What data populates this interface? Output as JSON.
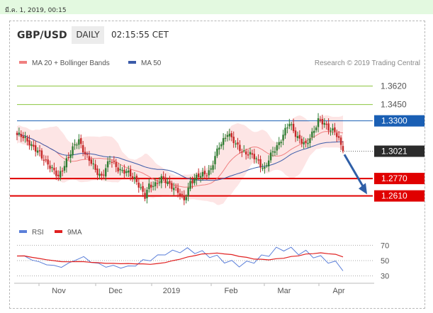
{
  "header": {
    "timestamp": "มี.ค. 1, 2019, 00:15",
    "pair": "GBP/USD",
    "period": "DAILY",
    "time": "02:15:55 CET"
  },
  "legend": {
    "ma20": "MA 20 + Bollinger Bands",
    "ma50": "MA 50",
    "credit": "Research © 2019 Trading Central",
    "rsi": "RSI",
    "ma9": "9MA"
  },
  "colors": {
    "ma20": "#f08080",
    "ma50": "#3b5ba9",
    "bands": "#fde0e0",
    "resistance": "#1a5fb4",
    "support": "#e00000",
    "target": "#8cc63f",
    "arrow": "#2f5fa7",
    "candle_up": "#2e7d32",
    "candle_down": "#c62828",
    "rsi": "#5b7fd9",
    "rsi_ma": "#e02020"
  },
  "chart_data": {
    "type": "candlestick",
    "instrument": "GBP/USD",
    "timeframe": "daily",
    "x_labels": [
      "Nov",
      "Dec",
      "2019",
      "Feb",
      "Mar",
      "Apr"
    ],
    "ylim": [
      1.238,
      1.376
    ],
    "levels": [
      {
        "value": 1.362,
        "label": "1.3620",
        "kind": "target"
      },
      {
        "value": 1.345,
        "label": "1.3450",
        "kind": "target"
      },
      {
        "value": 1.33,
        "label": "1.3300",
        "kind": "resistance"
      },
      {
        "value": 1.3021,
        "label": "1.3021",
        "kind": "last"
      },
      {
        "value": 1.277,
        "label": "1.2770",
        "kind": "support"
      },
      {
        "value": 1.261,
        "label": "1.2610",
        "kind": "support"
      }
    ],
    "close_anchors": [
      [
        0,
        1.317
      ],
      [
        6,
        1.311
      ],
      [
        12,
        1.296
      ],
      [
        15,
        1.292
      ],
      [
        20,
        1.277
      ],
      [
        24,
        1.295
      ],
      [
        30,
        1.312
      ],
      [
        34,
        1.297
      ],
      [
        38,
        1.284
      ],
      [
        41,
        1.28
      ],
      [
        45,
        1.293
      ],
      [
        49,
        1.287
      ],
      [
        53,
        1.282
      ],
      [
        58,
        1.276
      ],
      [
        62,
        1.259
      ],
      [
        64,
        1.27
      ],
      [
        70,
        1.276
      ],
      [
        76,
        1.27
      ],
      [
        81,
        1.256
      ],
      [
        84,
        1.275
      ],
      [
        89,
        1.279
      ],
      [
        94,
        1.286
      ],
      [
        98,
        1.306
      ],
      [
        102,
        1.32
      ],
      [
        106,
        1.307
      ],
      [
        111,
        1.301
      ],
      [
        117,
        1.293
      ],
      [
        120,
        1.286
      ],
      [
        124,
        1.301
      ],
      [
        128,
        1.314
      ],
      [
        132,
        1.327
      ],
      [
        136,
        1.316
      ],
      [
        140,
        1.306
      ],
      [
        143,
        1.319
      ],
      [
        146,
        1.331
      ],
      [
        150,
        1.324
      ],
      [
        154,
        1.322
      ],
      [
        157,
        1.306
      ],
      [
        158,
        1.3021
      ]
    ],
    "forecast_arrow": {
      "from": 1.299,
      "to": 1.2625
    },
    "rsi": {
      "ticks": [
        70,
        50,
        30
      ],
      "ylim": [
        25,
        75
      ],
      "values": [
        56,
        56,
        51,
        48,
        45,
        43,
        42,
        46,
        52,
        54,
        49,
        45,
        43,
        42,
        42,
        41,
        45,
        49,
        52,
        55,
        60,
        61,
        63,
        64,
        62,
        60,
        57,
        54,
        50,
        47,
        45,
        46,
        50,
        54,
        59,
        64,
        66,
        64,
        61,
        60,
        57,
        53,
        50,
        46,
        40
      ]
    }
  }
}
